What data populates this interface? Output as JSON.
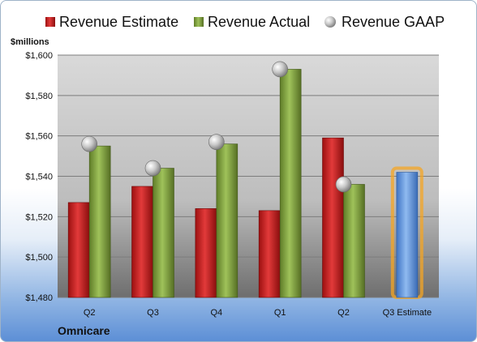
{
  "chart_data": {
    "type": "bar",
    "ylabel": "$millions",
    "ylim": [
      1480,
      1600
    ],
    "yticks": [
      "$1,480",
      "$1,500",
      "$1,520",
      "$1,540",
      "$1,560",
      "$1,580",
      "$1,600"
    ],
    "ytick_values": [
      1480,
      1500,
      1520,
      1540,
      1560,
      1580,
      1600
    ],
    "categories": [
      "Q2",
      "Q3",
      "Q4",
      "Q1",
      "Q2",
      "Q3 Estimate"
    ],
    "series": [
      {
        "name": "Revenue Estimate",
        "color": "#cc1f1f",
        "values": [
          1527,
          1535,
          1524,
          1523,
          1559,
          null
        ]
      },
      {
        "name": "Revenue Actual",
        "color": "#7fa03c",
        "values": [
          1555,
          1544,
          1556,
          1593,
          1536,
          null
        ]
      },
      {
        "name": "Revenue GAAP",
        "color": "#b8b8b8",
        "values": [
          1556,
          1544,
          1557,
          1593,
          1536,
          null
        ]
      }
    ],
    "estimate_bar": {
      "category": "Q3 Estimate",
      "value": 1542,
      "color": "#6a9fe0",
      "glow": "#f5a623"
    },
    "company": "Omnicare",
    "grid": true,
    "legend_position": "top"
  }
}
